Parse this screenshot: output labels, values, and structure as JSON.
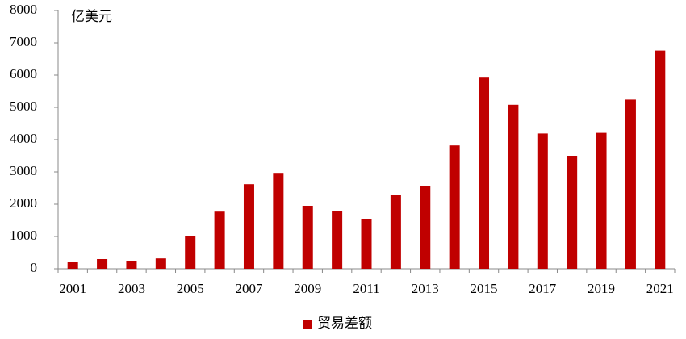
{
  "chart_data": {
    "type": "bar",
    "unit_label": "亿美元",
    "categories": [
      "2001",
      null,
      "2003",
      null,
      "2005",
      null,
      "2007",
      null,
      "2009",
      null,
      "2011",
      null,
      "2013",
      null,
      "2015",
      null,
      "2017",
      null,
      "2019",
      null,
      "2021"
    ],
    "series": [
      {
        "name": "贸易差额",
        "color": "#c00000",
        "values": [
          225,
          300,
          250,
          320,
          1020,
          1770,
          2620,
          2970,
          1950,
          1800,
          1550,
          2300,
          2570,
          3820,
          5920,
          5080,
          4190,
          3500,
          4210,
          5240,
          6760
        ]
      }
    ],
    "ylim": [
      0,
      8000
    ],
    "yticks": [
      0,
      1000,
      2000,
      3000,
      4000,
      5000,
      6000,
      7000,
      8000
    ],
    "legend": "bottom"
  }
}
